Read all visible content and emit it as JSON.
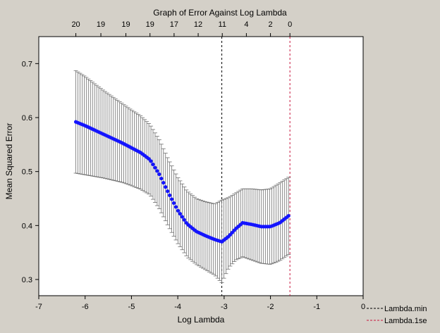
{
  "chart_data": {
    "type": "scatter",
    "title": "Graph of Error Against Log Lambda",
    "xlabel": "Log Lambda",
    "ylabel": "Mean Squared Error",
    "xlim": [
      -7,
      0
    ],
    "ylim": [
      0.27,
      0.75
    ],
    "x_ticks": [
      -7,
      -6,
      -5,
      -4,
      -3,
      -2,
      -1,
      0
    ],
    "y_ticks": [
      0.3,
      0.4,
      0.5,
      0.6,
      0.7
    ],
    "top_axis": {
      "positions": [
        -6.2,
        -5.66,
        -5.12,
        -4.6,
        -4.08,
        -3.56,
        -3.04,
        -2.52,
        -2.0,
        -1.58
      ],
      "labels": [
        "20",
        "19",
        "19",
        "19",
        "17",
        "12",
        "11",
        "4",
        "2",
        "0"
      ]
    },
    "grid": false,
    "reference_lines": [
      {
        "name": "Lambda.min",
        "x": -3.05,
        "color": "#000000"
      },
      {
        "name": "Lambda.1se",
        "x": -1.58,
        "color": "#c8143c"
      }
    ],
    "legend_position": "bottom-right-outside",
    "point_color": "#1414ff",
    "errorbar_color": "#6e6e6e",
    "points": [
      {
        "x": -6.2,
        "y": 0.592,
        "lo": 0.497,
        "hi": 0.687
      },
      {
        "x": -6.0,
        "y": 0.585,
        "lo": 0.494,
        "hi": 0.676
      },
      {
        "x": -5.8,
        "y": 0.577,
        "lo": 0.491,
        "hi": 0.663
      },
      {
        "x": -5.6,
        "y": 0.569,
        "lo": 0.488,
        "hi": 0.65
      },
      {
        "x": -5.4,
        "y": 0.561,
        "lo": 0.484,
        "hi": 0.638
      },
      {
        "x": -5.2,
        "y": 0.553,
        "lo": 0.48,
        "hi": 0.626
      },
      {
        "x": -5.0,
        "y": 0.544,
        "lo": 0.474,
        "hi": 0.614
      },
      {
        "x": -4.8,
        "y": 0.535,
        "lo": 0.467,
        "hi": 0.603
      },
      {
        "x": -4.6,
        "y": 0.522,
        "lo": 0.457,
        "hi": 0.587
      },
      {
        "x": -4.4,
        "y": 0.495,
        "lo": 0.431,
        "hi": 0.559
      },
      {
        "x": -4.2,
        "y": 0.46,
        "lo": 0.398,
        "hi": 0.522
      },
      {
        "x": -4.0,
        "y": 0.428,
        "lo": 0.367,
        "hi": 0.489
      },
      {
        "x": -3.8,
        "y": 0.403,
        "lo": 0.342,
        "hi": 0.464
      },
      {
        "x": -3.6,
        "y": 0.389,
        "lo": 0.328,
        "hi": 0.45
      },
      {
        "x": -3.4,
        "y": 0.381,
        "lo": 0.318,
        "hi": 0.444
      },
      {
        "x": -3.2,
        "y": 0.374,
        "lo": 0.308,
        "hi": 0.44
      },
      {
        "x": -3.05,
        "y": 0.37,
        "lo": 0.294,
        "hi": 0.447
      },
      {
        "x": -2.9,
        "y": 0.38,
        "lo": 0.322,
        "hi": 0.452
      },
      {
        "x": -2.75,
        "y": 0.394,
        "lo": 0.336,
        "hi": 0.46
      },
      {
        "x": -2.6,
        "y": 0.405,
        "lo": 0.342,
        "hi": 0.468
      },
      {
        "x": -2.4,
        "y": 0.402,
        "lo": 0.336,
        "hi": 0.468
      },
      {
        "x": -2.2,
        "y": 0.398,
        "lo": 0.33,
        "hi": 0.466
      },
      {
        "x": -2.0,
        "y": 0.398,
        "lo": 0.328,
        "hi": 0.468
      },
      {
        "x": -1.8,
        "y": 0.405,
        "lo": 0.335,
        "hi": 0.479
      },
      {
        "x": -1.58,
        "y": 0.42,
        "lo": 0.348,
        "hi": 0.491
      }
    ]
  }
}
